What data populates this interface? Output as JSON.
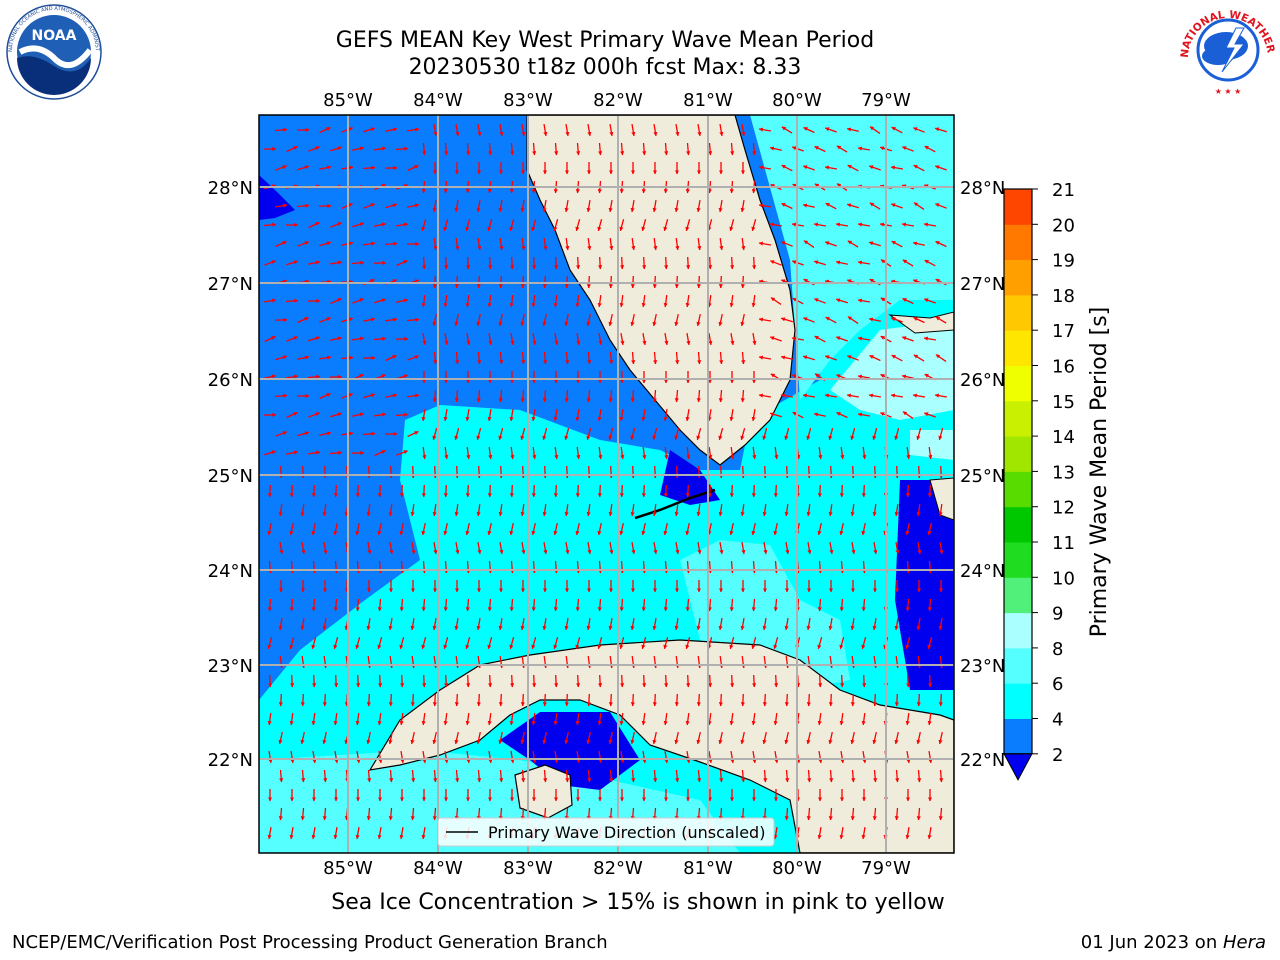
{
  "header": {
    "title_line1": "GEFS MEAN Key West Primary Wave Mean Period",
    "title_line2": "20230530 t18z 000h fcst   Max: 8.33"
  },
  "logos": {
    "left": {
      "icon": "noaa-logo",
      "text": "NOAA",
      "ring_text": "NATIONAL OCEANIC AND ATMOSPHERIC ADMINISTRATION · U.S. DEPARTMENT OF COMMERCE"
    },
    "right": {
      "icon": "nws-logo",
      "ring_text": "NATIONAL WEATHER SERVICE"
    }
  },
  "map": {
    "lon_labels": [
      "85°W",
      "84°W",
      "83°W",
      "82°W",
      "81°W",
      "80°W",
      "79°W"
    ],
    "lat_labels": [
      "28°N",
      "27°N",
      "26°N",
      "25°N",
      "24°N",
      "23°N",
      "22°N"
    ],
    "legend_label": "Primary Wave Direction (unscaled)",
    "colors": {
      "land": "#efecdc",
      "blue_2_4": "#0a7dfe",
      "dark_blue_below_2": "#0000ee",
      "cyan_4_6": "#00ffff",
      "light_cyan_6_8": "#55ffff",
      "pale_cyan_8_9": "#aaffff",
      "arrow": "#ff0000",
      "grid": "#b0b0b0"
    }
  },
  "colorbar": {
    "label": "Primary Wave Mean Period [s]",
    "ticks": [
      "2",
      "4",
      "6",
      "8",
      "9",
      "10",
      "11",
      "12",
      "13",
      "14",
      "15",
      "16",
      "17",
      "18",
      "19",
      "20",
      "21"
    ],
    "colors": [
      "#0a7dfe",
      "#00ffff",
      "#55ffff",
      "#aaffff",
      "#50f07a",
      "#20dc20",
      "#00c800",
      "#58dc00",
      "#a0e600",
      "#c8f000",
      "#f0ff00",
      "#ffe600",
      "#ffc800",
      "#ffa000",
      "#ff7800",
      "#ff4600",
      "#ff0000"
    ],
    "extend_below_color": "#0000ee"
  },
  "bottom_note": "Sea Ice Concentration > 15% is shown in pink to yellow",
  "footer": {
    "left": "NCEP/EMC/Verification Post Processing Product Generation Branch",
    "date": "01 Jun 2023 on ",
    "host": "Hera"
  }
}
